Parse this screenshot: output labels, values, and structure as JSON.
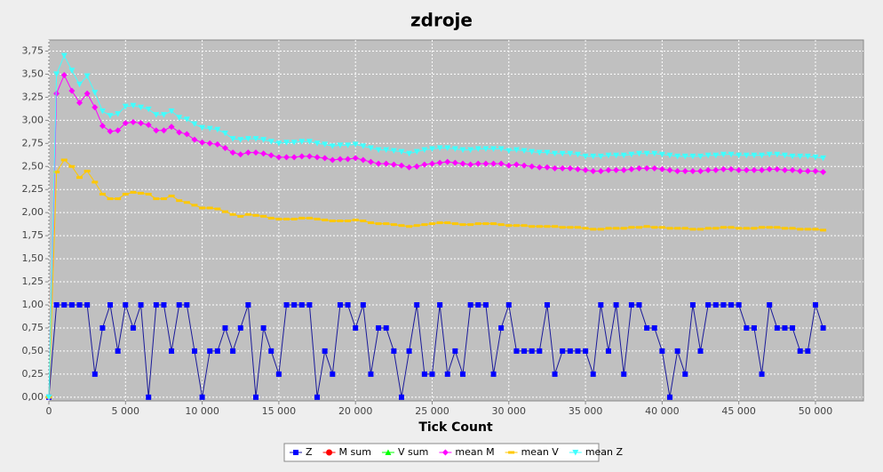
{
  "chart_data": {
    "type": "line",
    "title": "zdroje",
    "xlabel": "Tick Count",
    "x": [
      0,
      500,
      1000,
      1500,
      2000,
      2500,
      3000,
      3500,
      4000,
      4500,
      5000,
      5500,
      6000,
      6500,
      7000,
      7500,
      8000,
      8500,
      9000,
      9500,
      10000,
      10500,
      11000,
      11500,
      12000,
      12500,
      13000,
      13500,
      14000,
      14500,
      15000,
      15500,
      16000,
      16500,
      17000,
      17500,
      18000,
      18500,
      19000,
      19500,
      20000,
      20500,
      21000,
      21500,
      22000,
      22500,
      23000,
      23500,
      24000,
      24500,
      25000,
      25500,
      26000,
      26500,
      27000,
      27500,
      28000,
      28500,
      29000,
      29500,
      30000,
      30500,
      31000,
      31500,
      32000,
      32500,
      33000,
      33500,
      34000,
      34500,
      35000,
      35500,
      36000,
      36500,
      37000,
      37500,
      38000,
      38500,
      39000,
      39500,
      40000,
      40500,
      41000,
      41500,
      42000,
      42500,
      43000,
      43500,
      44000,
      44500,
      45000,
      45500,
      46000,
      46500,
      47000,
      47500,
      48000,
      48500,
      49000,
      49500,
      50000,
      50500
    ],
    "series": [
      {
        "name": "Z",
        "color": "#0000ff",
        "values": [
          0,
          1,
          1,
          1,
          1,
          1,
          0.25,
          0.75,
          1,
          0.5,
          1,
          0.75,
          1,
          0,
          1,
          1,
          0.5,
          1,
          1,
          0.5,
          0,
          0.5,
          0.5,
          0.75,
          0.5,
          0.75,
          1,
          0,
          0.75,
          0.5,
          0.25,
          1,
          1,
          1,
          1,
          0,
          0.5,
          0.25,
          1,
          1,
          0.75,
          1,
          0.25,
          0.75,
          0.75,
          0.5,
          0,
          0.5,
          1,
          0.25,
          0.25,
          1,
          0.25,
          0.5,
          0.25,
          1,
          1,
          1,
          0.25,
          0.75,
          1,
          0.5,
          0.5,
          0.5,
          0.5,
          1,
          0.25,
          0.5,
          0.5,
          0.5,
          0.5,
          0.25,
          1,
          0.5,
          1,
          0.25,
          1,
          1,
          0.75,
          0.75,
          0.5,
          0,
          0.5,
          0.25,
          1,
          0.5,
          1,
          1,
          1,
          1,
          1,
          0.75,
          0.75,
          0.25,
          1,
          0.75,
          0.75,
          0.75,
          0.5,
          0.5,
          1,
          0.75
        ]
      },
      {
        "name": "M sum",
        "color": "#ff0000",
        "values": [
          null,
          null,
          null,
          null,
          null,
          null,
          null,
          null,
          null,
          null,
          null,
          null,
          null,
          null,
          null,
          null,
          null,
          null,
          null,
          null,
          null,
          null,
          null,
          null,
          null,
          null,
          null,
          null,
          null,
          null,
          null,
          null,
          null,
          null,
          null,
          null,
          null,
          null,
          null,
          null,
          null,
          null,
          null,
          null,
          null,
          null,
          null,
          null,
          null,
          null,
          null,
          null,
          null,
          null,
          null,
          null,
          null,
          null,
          null,
          null,
          null,
          null,
          null,
          null,
          null,
          null,
          null,
          null,
          null,
          null,
          null,
          null,
          null,
          null,
          null,
          null,
          null,
          null,
          null,
          null,
          null,
          null,
          null,
          null,
          null,
          null,
          null,
          null,
          null,
          null,
          null,
          null,
          null,
          null,
          null,
          null,
          null,
          null,
          null,
          null,
          null,
          null
        ]
      },
      {
        "name": "V sum",
        "color": "#00ff00",
        "values": [
          null,
          null,
          null,
          null,
          null,
          null,
          null,
          null,
          null,
          null,
          null,
          null,
          null,
          null,
          null,
          null,
          null,
          null,
          null,
          null,
          null,
          null,
          null,
          null,
          null,
          null,
          null,
          null,
          null,
          null,
          null,
          null,
          null,
          null,
          null,
          null,
          null,
          null,
          null,
          null,
          null,
          null,
          null,
          null,
          null,
          null,
          null,
          null,
          null,
          null,
          null,
          null,
          null,
          null,
          null,
          null,
          null,
          null,
          null,
          null,
          null,
          null,
          null,
          null,
          null,
          null,
          null,
          null,
          null,
          null,
          null,
          null,
          null,
          null,
          null,
          null,
          null,
          null,
          null,
          null,
          null,
          null,
          null,
          null,
          null,
          null,
          null,
          null,
          null,
          null,
          null,
          null,
          null,
          null,
          null,
          null,
          null,
          null,
          null,
          null,
          null,
          null
        ]
      },
      {
        "name": "mean M",
        "color": "#ff00ff",
        "values": [
          0,
          3.29,
          3.49,
          3.32,
          3.19,
          3.29,
          3.14,
          2.94,
          2.88,
          2.89,
          2.97,
          2.98,
          2.97,
          2.95,
          2.89,
          2.89,
          2.93,
          2.87,
          2.85,
          2.79,
          2.76,
          2.75,
          2.74,
          2.7,
          2.65,
          2.63,
          2.65,
          2.65,
          2.64,
          2.62,
          2.6,
          2.6,
          2.6,
          2.61,
          2.61,
          2.6,
          2.59,
          2.57,
          2.58,
          2.58,
          2.59,
          2.57,
          2.55,
          2.53,
          2.53,
          2.52,
          2.51,
          2.49,
          2.5,
          2.52,
          2.53,
          2.54,
          2.55,
          2.54,
          2.53,
          2.52,
          2.53,
          2.53,
          2.53,
          2.53,
          2.51,
          2.52,
          2.51,
          2.5,
          2.49,
          2.49,
          2.48,
          2.48,
          2.48,
          2.47,
          2.46,
          2.45,
          2.45,
          2.46,
          2.46,
          2.46,
          2.47,
          2.48,
          2.48,
          2.48,
          2.47,
          2.46,
          2.45,
          2.45,
          2.45,
          2.45,
          2.46,
          2.46,
          2.47,
          2.47,
          2.46,
          2.46,
          2.46,
          2.46,
          2.47,
          2.47,
          2.46,
          2.46,
          2.45,
          2.45,
          2.45,
          2.44
        ]
      },
      {
        "name": "mean V",
        "color": "#ffc800",
        "values": [
          0,
          2.44,
          2.57,
          2.5,
          2.38,
          2.45,
          2.33,
          2.2,
          2.15,
          2.15,
          2.2,
          2.22,
          2.21,
          2.2,
          2.15,
          2.15,
          2.18,
          2.13,
          2.11,
          2.08,
          2.05,
          2.05,
          2.04,
          2.01,
          1.98,
          1.96,
          1.98,
          1.97,
          1.96,
          1.94,
          1.93,
          1.93,
          1.93,
          1.94,
          1.94,
          1.93,
          1.92,
          1.91,
          1.91,
          1.91,
          1.92,
          1.91,
          1.89,
          1.88,
          1.88,
          1.87,
          1.86,
          1.85,
          1.86,
          1.87,
          1.88,
          1.89,
          1.89,
          1.88,
          1.87,
          1.87,
          1.88,
          1.88,
          1.88,
          1.87,
          1.86,
          1.86,
          1.86,
          1.85,
          1.85,
          1.85,
          1.85,
          1.84,
          1.84,
          1.84,
          1.83,
          1.82,
          1.82,
          1.83,
          1.83,
          1.83,
          1.84,
          1.84,
          1.85,
          1.84,
          1.84,
          1.83,
          1.83,
          1.83,
          1.82,
          1.82,
          1.83,
          1.83,
          1.84,
          1.84,
          1.83,
          1.83,
          1.83,
          1.84,
          1.84,
          1.84,
          1.83,
          1.83,
          1.82,
          1.82,
          1.82,
          1.81
        ]
      },
      {
        "name": "mean Z",
        "color": "#40ffff",
        "values": [
          0,
          3.5,
          3.7,
          3.54,
          3.39,
          3.48,
          3.3,
          3.1,
          3.05,
          3.07,
          3.15,
          3.16,
          3.14,
          3.12,
          3.06,
          3.06,
          3.1,
          3.03,
          3.01,
          2.96,
          2.92,
          2.91,
          2.9,
          2.86,
          2.8,
          2.79,
          2.8,
          2.8,
          2.79,
          2.77,
          2.75,
          2.76,
          2.76,
          2.77,
          2.77,
          2.75,
          2.74,
          2.72,
          2.73,
          2.73,
          2.74,
          2.72,
          2.7,
          2.68,
          2.68,
          2.67,
          2.66,
          2.64,
          2.66,
          2.68,
          2.69,
          2.7,
          2.7,
          2.69,
          2.68,
          2.68,
          2.69,
          2.69,
          2.69,
          2.69,
          2.67,
          2.68,
          2.67,
          2.66,
          2.65,
          2.65,
          2.64,
          2.64,
          2.64,
          2.63,
          2.61,
          2.61,
          2.61,
          2.62,
          2.62,
          2.62,
          2.63,
          2.64,
          2.64,
          2.64,
          2.63,
          2.62,
          2.61,
          2.61,
          2.61,
          2.61,
          2.62,
          2.62,
          2.63,
          2.63,
          2.62,
          2.62,
          2.62,
          2.62,
          2.63,
          2.63,
          2.62,
          2.61,
          2.61,
          2.61,
          2.6,
          2.59
        ]
      }
    ],
    "xlim": [
      0,
      53130
    ],
    "ylim": [
      -0.04,
      3.87
    ],
    "xticks": [
      0,
      {
        "value": 5000,
        "label": "5 000"
      },
      {
        "value": 10000,
        "label": "10 000"
      },
      {
        "value": 15000,
        "label": "15 000"
      },
      {
        "value": 20000,
        "label": "20 000"
      },
      {
        "value": 25000,
        "label": "25 000"
      },
      {
        "value": 30000,
        "label": "30 000"
      },
      {
        "value": 35000,
        "label": "35 000"
      },
      {
        "value": 40000,
        "label": "40 000"
      },
      {
        "value": 45000,
        "label": "45 000"
      },
      {
        "value": 50000,
        "label": "50 000"
      }
    ],
    "yticks": [
      {
        "value": 0,
        "label": "0,00"
      },
      {
        "value": 0.25,
        "label": "0,25"
      },
      {
        "value": 0.5,
        "label": "0,50"
      },
      {
        "value": 0.75,
        "label": "0,75"
      },
      {
        "value": 1,
        "label": "1,00"
      },
      {
        "value": 1.25,
        "label": "1,25"
      },
      {
        "value": 1.5,
        "label": "1,50"
      },
      {
        "value": 1.75,
        "label": "1,75"
      },
      {
        "value": 2,
        "label": "2,00"
      },
      {
        "value": 2.25,
        "label": "2,25"
      },
      {
        "value": 2.5,
        "label": "2,50"
      },
      {
        "value": 2.75,
        "label": "2,75"
      },
      {
        "value": 3,
        "label": "3,00"
      },
      {
        "value": 3.25,
        "label": "3,25"
      },
      {
        "value": 3.5,
        "label": "3,50"
      },
      {
        "value": 3.75,
        "label": "3,75"
      }
    ],
    "grid": true,
    "legend": "bottom"
  }
}
